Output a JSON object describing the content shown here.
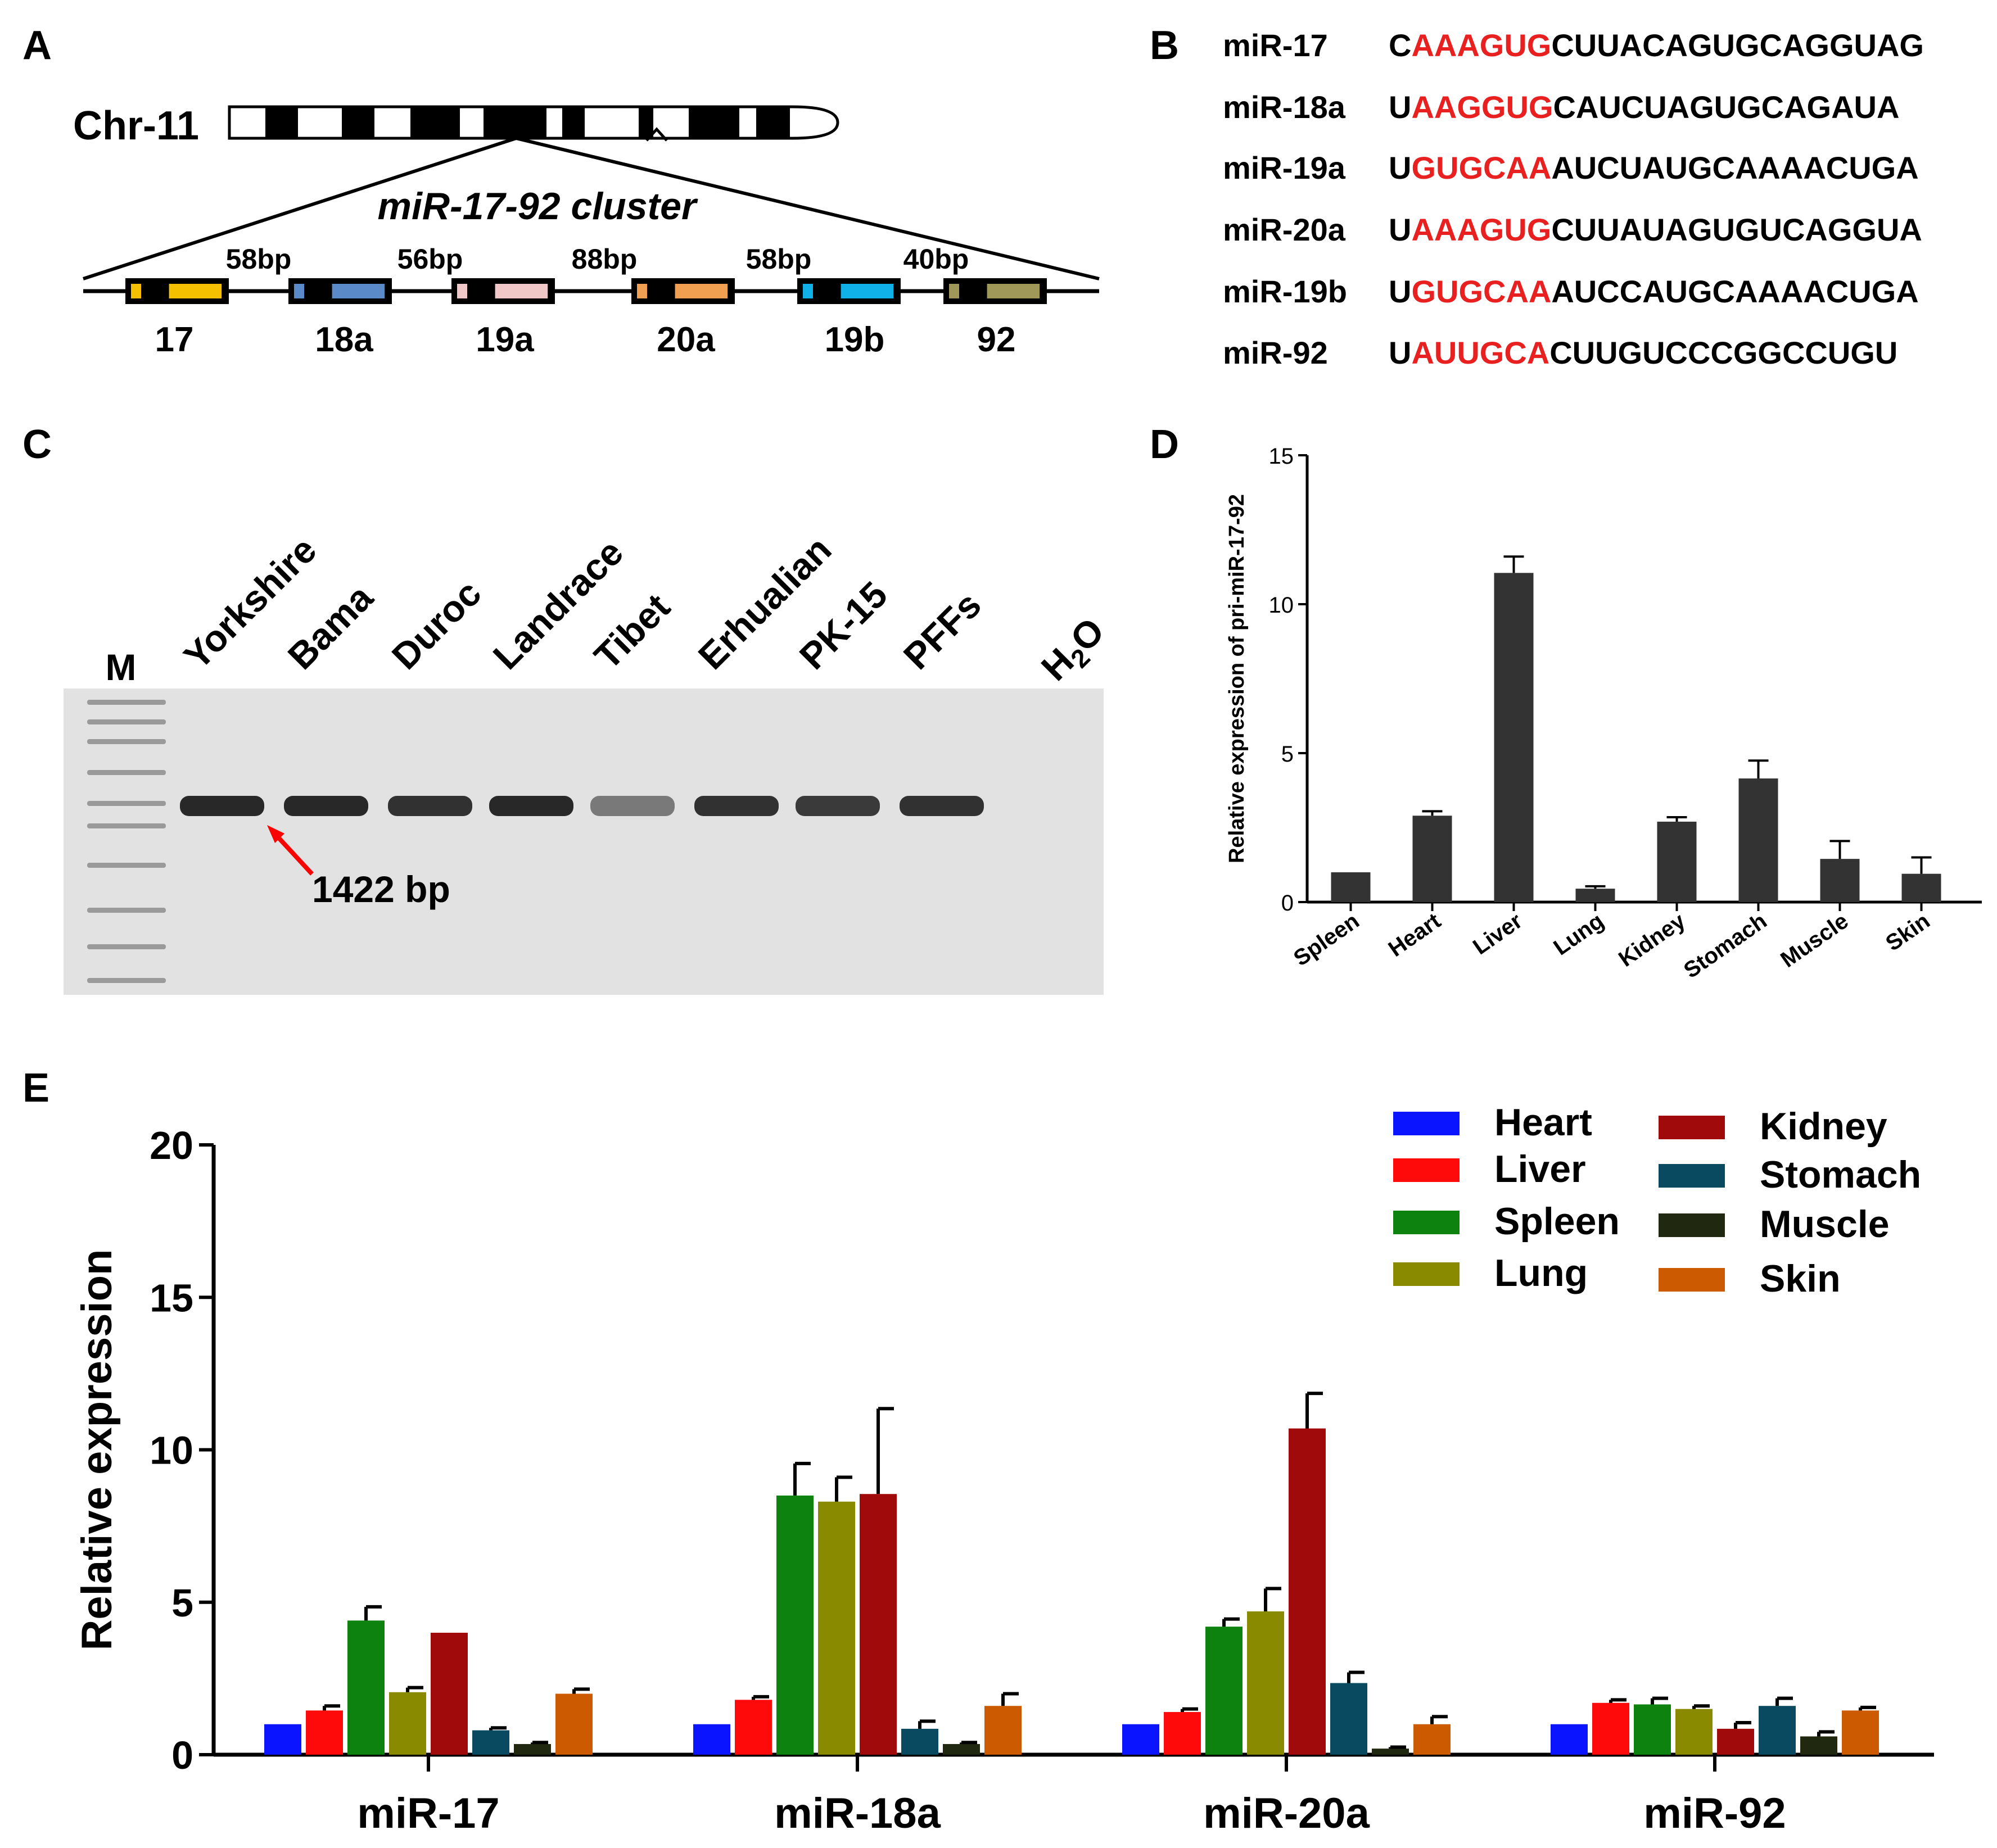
{
  "panel_labels": {
    "a": "A",
    "b": "B",
    "c": "C",
    "d": "D",
    "e": "E"
  },
  "panelA": {
    "chromosome_label": "Chr-11",
    "cluster_label": "miR-17-92 cluster",
    "spacers": [
      "58bp",
      "56bp",
      "88bp",
      "58bp",
      "40bp"
    ],
    "genes": [
      {
        "name": "17",
        "color": "#f5c000"
      },
      {
        "name": "18a",
        "color": "#5b8ac8"
      },
      {
        "name": "19a",
        "color": "#f0c8c8"
      },
      {
        "name": "20a",
        "color": "#f0a050"
      },
      {
        "name": "19b",
        "color": "#10b0e8"
      },
      {
        "name": "92",
        "color": "#a09858"
      }
    ]
  },
  "panelB": {
    "sequences": [
      {
        "name": "miR-17",
        "pre": "C",
        "seed": "AAAGUG",
        "post": "CUUACAGUGCAGGUAG"
      },
      {
        "name": "miR-18a",
        "pre": "U",
        "seed": "AAGGUG",
        "post": "CAUCUAGUGCAGAUA"
      },
      {
        "name": "miR-19a",
        "pre": "U",
        "seed": "GUGCAA",
        "post": "AUCUAUGCAAAACUGA"
      },
      {
        "name": "miR-20a",
        "pre": "U",
        "seed": "AAAGUG",
        "post": "CUUAUAGUGUCAGGUA"
      },
      {
        "name": "miR-19b",
        "pre": "U",
        "seed": "GUGCAA",
        "post": "AUCCAUGCAAAACUGA"
      },
      {
        "name": "miR-92",
        "pre": "U",
        "seed": "AUUGCA",
        "post": "CUUGUCCCGGCCUGU"
      }
    ],
    "seed_color": "#e82020"
  },
  "panelC": {
    "marker": "M",
    "lanes": [
      "Yorkshire",
      "Bama",
      "Duroc",
      "Landrace",
      "Tibet",
      "Erhualian",
      "PK-15",
      "PFFs"
    ],
    "water": {
      "base": "H",
      "sub": "2",
      "tail": "O"
    },
    "band_label": "1422 bp"
  },
  "chart_data": [
    {
      "type": "bar",
      "title": "",
      "ylabel": "Relative expression of pri-miR-17-92",
      "xlabel": "",
      "categories": [
        "Spleen",
        "Heart",
        "Liver",
        "Lung",
        "Kidney",
        "Stomach",
        "Muscle",
        "Skin"
      ],
      "values": [
        1.0,
        2.9,
        11.05,
        0.45,
        2.7,
        4.15,
        1.45,
        0.95
      ],
      "errors": [
        0.0,
        0.15,
        0.55,
        0.08,
        0.15,
        0.6,
        0.6,
        0.55
      ],
      "ylim": [
        0,
        15
      ],
      "yticks": [
        "0",
        "5",
        "10",
        "15"
      ],
      "bar_color": "#333333"
    },
    {
      "type": "bar",
      "title": "",
      "ylabel": "Relative expression",
      "xlabel": "",
      "categories": [
        "miR-17",
        "miR-18a",
        "miR-20a",
        "miR-92"
      ],
      "ylim": [
        0,
        20
      ],
      "yticks": [
        "0",
        "5",
        "10",
        "15",
        "20"
      ],
      "series": [
        {
          "name": "Heart",
          "color": "#0a14ff",
          "values": [
            1.0,
            1.0,
            1.0,
            1.0
          ],
          "errors": [
            0,
            0,
            0,
            0
          ]
        },
        {
          "name": "Liver",
          "color": "#ff0a0a",
          "values": [
            1.45,
            1.8,
            1.4,
            1.7
          ],
          "errors": [
            0.15,
            0.1,
            0.1,
            0.1
          ]
        },
        {
          "name": "Spleen",
          "color": "#0e820e",
          "values": [
            4.4,
            8.5,
            4.2,
            1.65
          ],
          "errors": [
            0.45,
            1.05,
            0.25,
            0.2
          ]
        },
        {
          "name": "Lung",
          "color": "#8a8a00",
          "values": [
            2.05,
            8.3,
            4.7,
            1.5
          ],
          "errors": [
            0.15,
            0.8,
            0.75,
            0.1
          ]
        },
        {
          "name": "Kidney",
          "color": "#a00a0a",
          "values": [
            4.0,
            8.55,
            10.7,
            0.85
          ],
          "errors": [
            0,
            2.8,
            1.15,
            0.2
          ]
        },
        {
          "name": "Stomach",
          "color": "#0a4a60",
          "values": [
            0.8,
            0.85,
            2.35,
            1.6
          ],
          "errors": [
            0.08,
            0.25,
            0.35,
            0.25
          ]
        },
        {
          "name": "Muscle",
          "color": "#202810",
          "values": [
            0.35,
            0.35,
            0.2,
            0.6
          ],
          "errors": [
            0.05,
            0.05,
            0.05,
            0.15
          ]
        },
        {
          "name": "Skin",
          "color": "#cc5a00",
          "values": [
            2.0,
            1.6,
            1.0,
            1.45
          ],
          "errors": [
            0.15,
            0.4,
            0.25,
            0.1
          ]
        }
      ],
      "legend_order": [
        "Heart",
        "Liver",
        "Spleen",
        "Lung",
        "Kidney",
        "Stomach",
        "Muscle",
        "Skin"
      ],
      "legend_position": "top-right"
    }
  ]
}
